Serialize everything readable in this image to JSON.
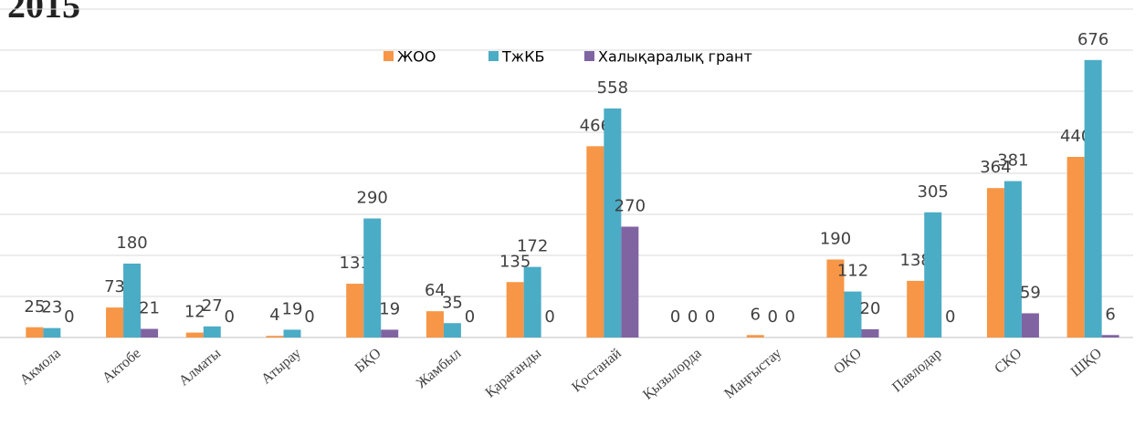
{
  "chart_data": {
    "type": "bar",
    "title": "2015",
    "categories": [
      "Акмола",
      "Актобе",
      "Алматы",
      "Атырау",
      "БҚО",
      "Жамбыл",
      "Қарағанды",
      "Қостанай",
      "Қызылорда",
      "Маңғыстау",
      "ОҚО",
      "Павлодар",
      "СҚО",
      "ШҚО"
    ],
    "series": [
      {
        "name": "ЖОО",
        "color": "#f79646",
        "values": [
          25,
          73,
          12,
          4,
          131,
          64,
          135,
          466,
          0,
          6,
          190,
          138,
          364,
          440
        ]
      },
      {
        "name": "ТжКБ",
        "color": "#4bacc6",
        "values": [
          23,
          180,
          27,
          19,
          290,
          35,
          172,
          558,
          0,
          0,
          112,
          305,
          381,
          676
        ]
      },
      {
        "name": "Халықаралық грант",
        "color": "#8064a2",
        "values": [
          0,
          21,
          0,
          0,
          19,
          0,
          0,
          270,
          0,
          0,
          20,
          0,
          59,
          6
        ]
      }
    ],
    "ylim": [
      0,
      800
    ],
    "yticks": [
      0,
      100,
      200,
      300,
      400,
      500,
      600,
      700,
      800
    ],
    "grid": true,
    "legend": "top"
  }
}
